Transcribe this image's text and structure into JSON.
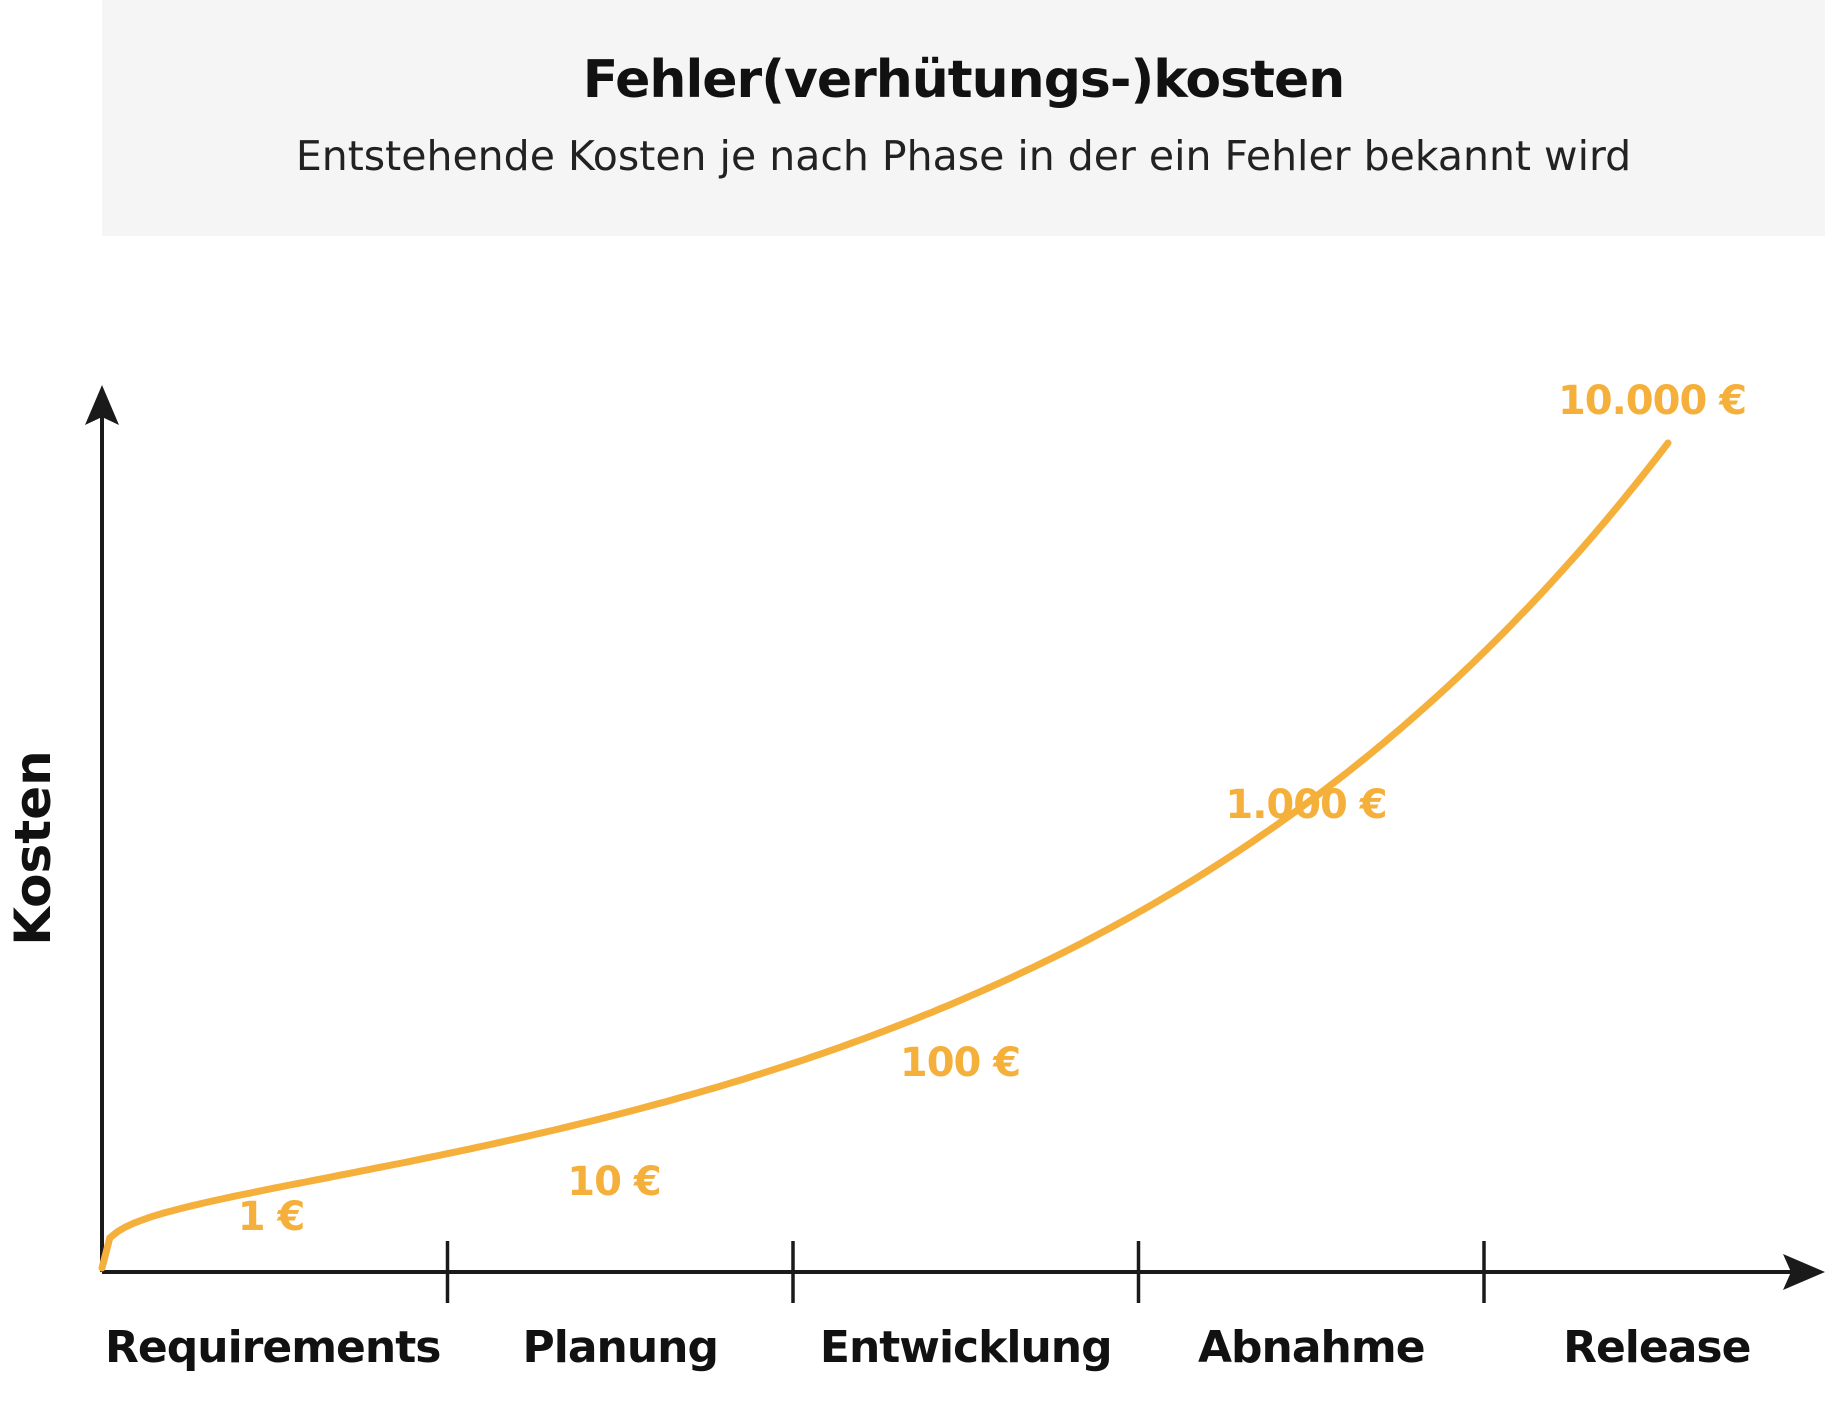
{
  "header": {
    "title": "Fehler(verhütungs-)kosten",
    "subtitle": "Entstehende Kosten je nach Phase in der ein Fehler bekannt wird"
  },
  "colors": {
    "curve": "#f5b03c",
    "axis": "#1a1a1a",
    "header_bg": "#f5f5f5"
  },
  "chart_data": {
    "type": "line",
    "title": "Fehler(verhütungs-)kosten",
    "subtitle": "Entstehende Kosten je nach Phase in der ein Fehler bekannt wird",
    "xlabel": "",
    "ylabel": "Kosten",
    "categories": [
      "Requirements",
      "Planung",
      "Entwicklung",
      "Abnahme",
      "Release"
    ],
    "values": [
      1,
      10,
      100,
      1000,
      10000
    ],
    "data_labels": [
      "1 €",
      "10 €",
      "100 €",
      "1.000 €",
      "10.000 €"
    ],
    "grid": false,
    "legend": "none"
  }
}
